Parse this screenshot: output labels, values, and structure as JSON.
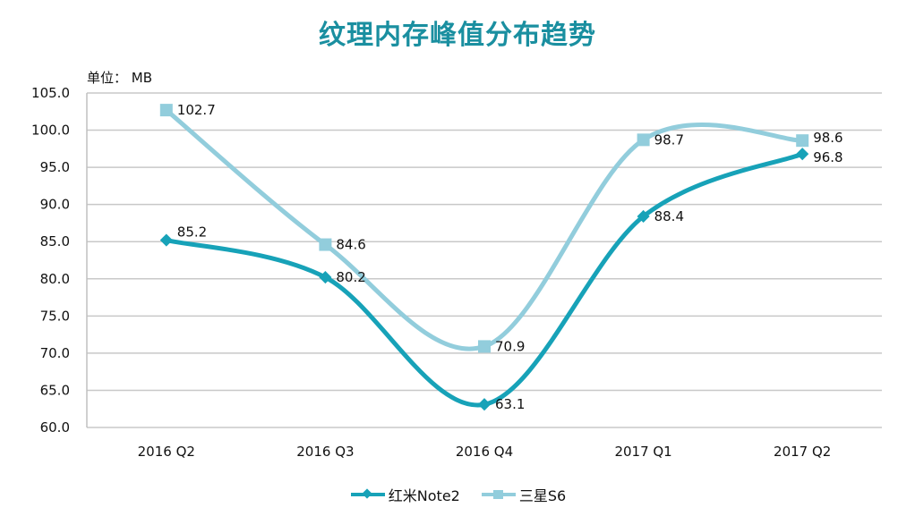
{
  "chart_data": {
    "type": "line",
    "title": "纹理内存峰值分布趋势",
    "unit_label": "单位：  MB",
    "xlabel": "",
    "ylabel": "",
    "categories": [
      "2016 Q2",
      "2016 Q3",
      "2016 Q4",
      "2017 Q1",
      "2017 Q2"
    ],
    "ylim": [
      60.0,
      105.0
    ],
    "yticks": [
      "60.0",
      "65.0",
      "70.0",
      "75.0",
      "80.0",
      "85.0",
      "90.0",
      "95.0",
      "100.0",
      "105.0"
    ],
    "grid": true,
    "legend_position": "bottom",
    "smooth": true,
    "series": [
      {
        "name": "红米Note2",
        "marker": "diamond",
        "color": "#17a2b8",
        "values": [
          85.2,
          80.2,
          63.1,
          88.4,
          96.8
        ],
        "labels": [
          "85.2",
          "80.2",
          "63.1",
          "88.4",
          "96.8"
        ]
      },
      {
        "name": "三星S6",
        "marker": "square",
        "color": "#92cddc",
        "values": [
          102.7,
          84.6,
          70.9,
          98.7,
          98.6
        ],
        "labels": [
          "102.7",
          "84.6",
          "70.9",
          "98.7",
          "98.6"
        ]
      }
    ]
  }
}
